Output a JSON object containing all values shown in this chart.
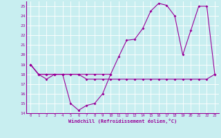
{
  "xlabel": "Windchill (Refroidissement éolien,°C)",
  "x": [
    0,
    1,
    2,
    3,
    4,
    5,
    6,
    7,
    8,
    9,
    10,
    11,
    12,
    13,
    14,
    15,
    16,
    17,
    18,
    19,
    20,
    21,
    22,
    23
  ],
  "line1_x": [
    0,
    1,
    2,
    3,
    4,
    5,
    6,
    7,
    8,
    9,
    10
  ],
  "line1_y": [
    19,
    18,
    17.5,
    18,
    18,
    15,
    14.3,
    14.8,
    15,
    16,
    18
  ],
  "line2_x": [
    0,
    1,
    2,
    3,
    4,
    5,
    6,
    7,
    8,
    9,
    10,
    11,
    12,
    13,
    14,
    15,
    16,
    17,
    18,
    19,
    20,
    21,
    22,
    23
  ],
  "line2_y": [
    19,
    18,
    18,
    18,
    18,
    18,
    18,
    17.5,
    17.5,
    17.5,
    17.5,
    17.5,
    17.5,
    17.5,
    17.5,
    17.5,
    17.5,
    17.5,
    17.5,
    17.5,
    17.5,
    17.5,
    17.5,
    18
  ],
  "line3_x": [
    0,
    1,
    2,
    3,
    4,
    5,
    6,
    7,
    8,
    9,
    10,
    11,
    12,
    13,
    14,
    15,
    16,
    17,
    18,
    19,
    20,
    21,
    22,
    23
  ],
  "line3_y": [
    19,
    18,
    18,
    18,
    18,
    18,
    18,
    18,
    18,
    18,
    18,
    19.8,
    21.5,
    21.6,
    22.7,
    24.5,
    25.3,
    25.1,
    24,
    20,
    22.5,
    25,
    25,
    18
  ],
  "ylim": [
    14,
    25.5
  ],
  "xlim": [
    -0.5,
    23.5
  ],
  "yticks": [
    14,
    15,
    16,
    17,
    18,
    19,
    20,
    21,
    22,
    23,
    24,
    25
  ],
  "xticks": [
    0,
    1,
    2,
    3,
    4,
    5,
    6,
    7,
    8,
    9,
    10,
    11,
    12,
    13,
    14,
    15,
    16,
    17,
    18,
    19,
    20,
    21,
    22,
    23
  ],
  "color": "#990099",
  "bg_color": "#c8eef0",
  "grid_color": "#aadddd",
  "marker": "D",
  "markersize": 2.0,
  "linewidth": 0.8
}
